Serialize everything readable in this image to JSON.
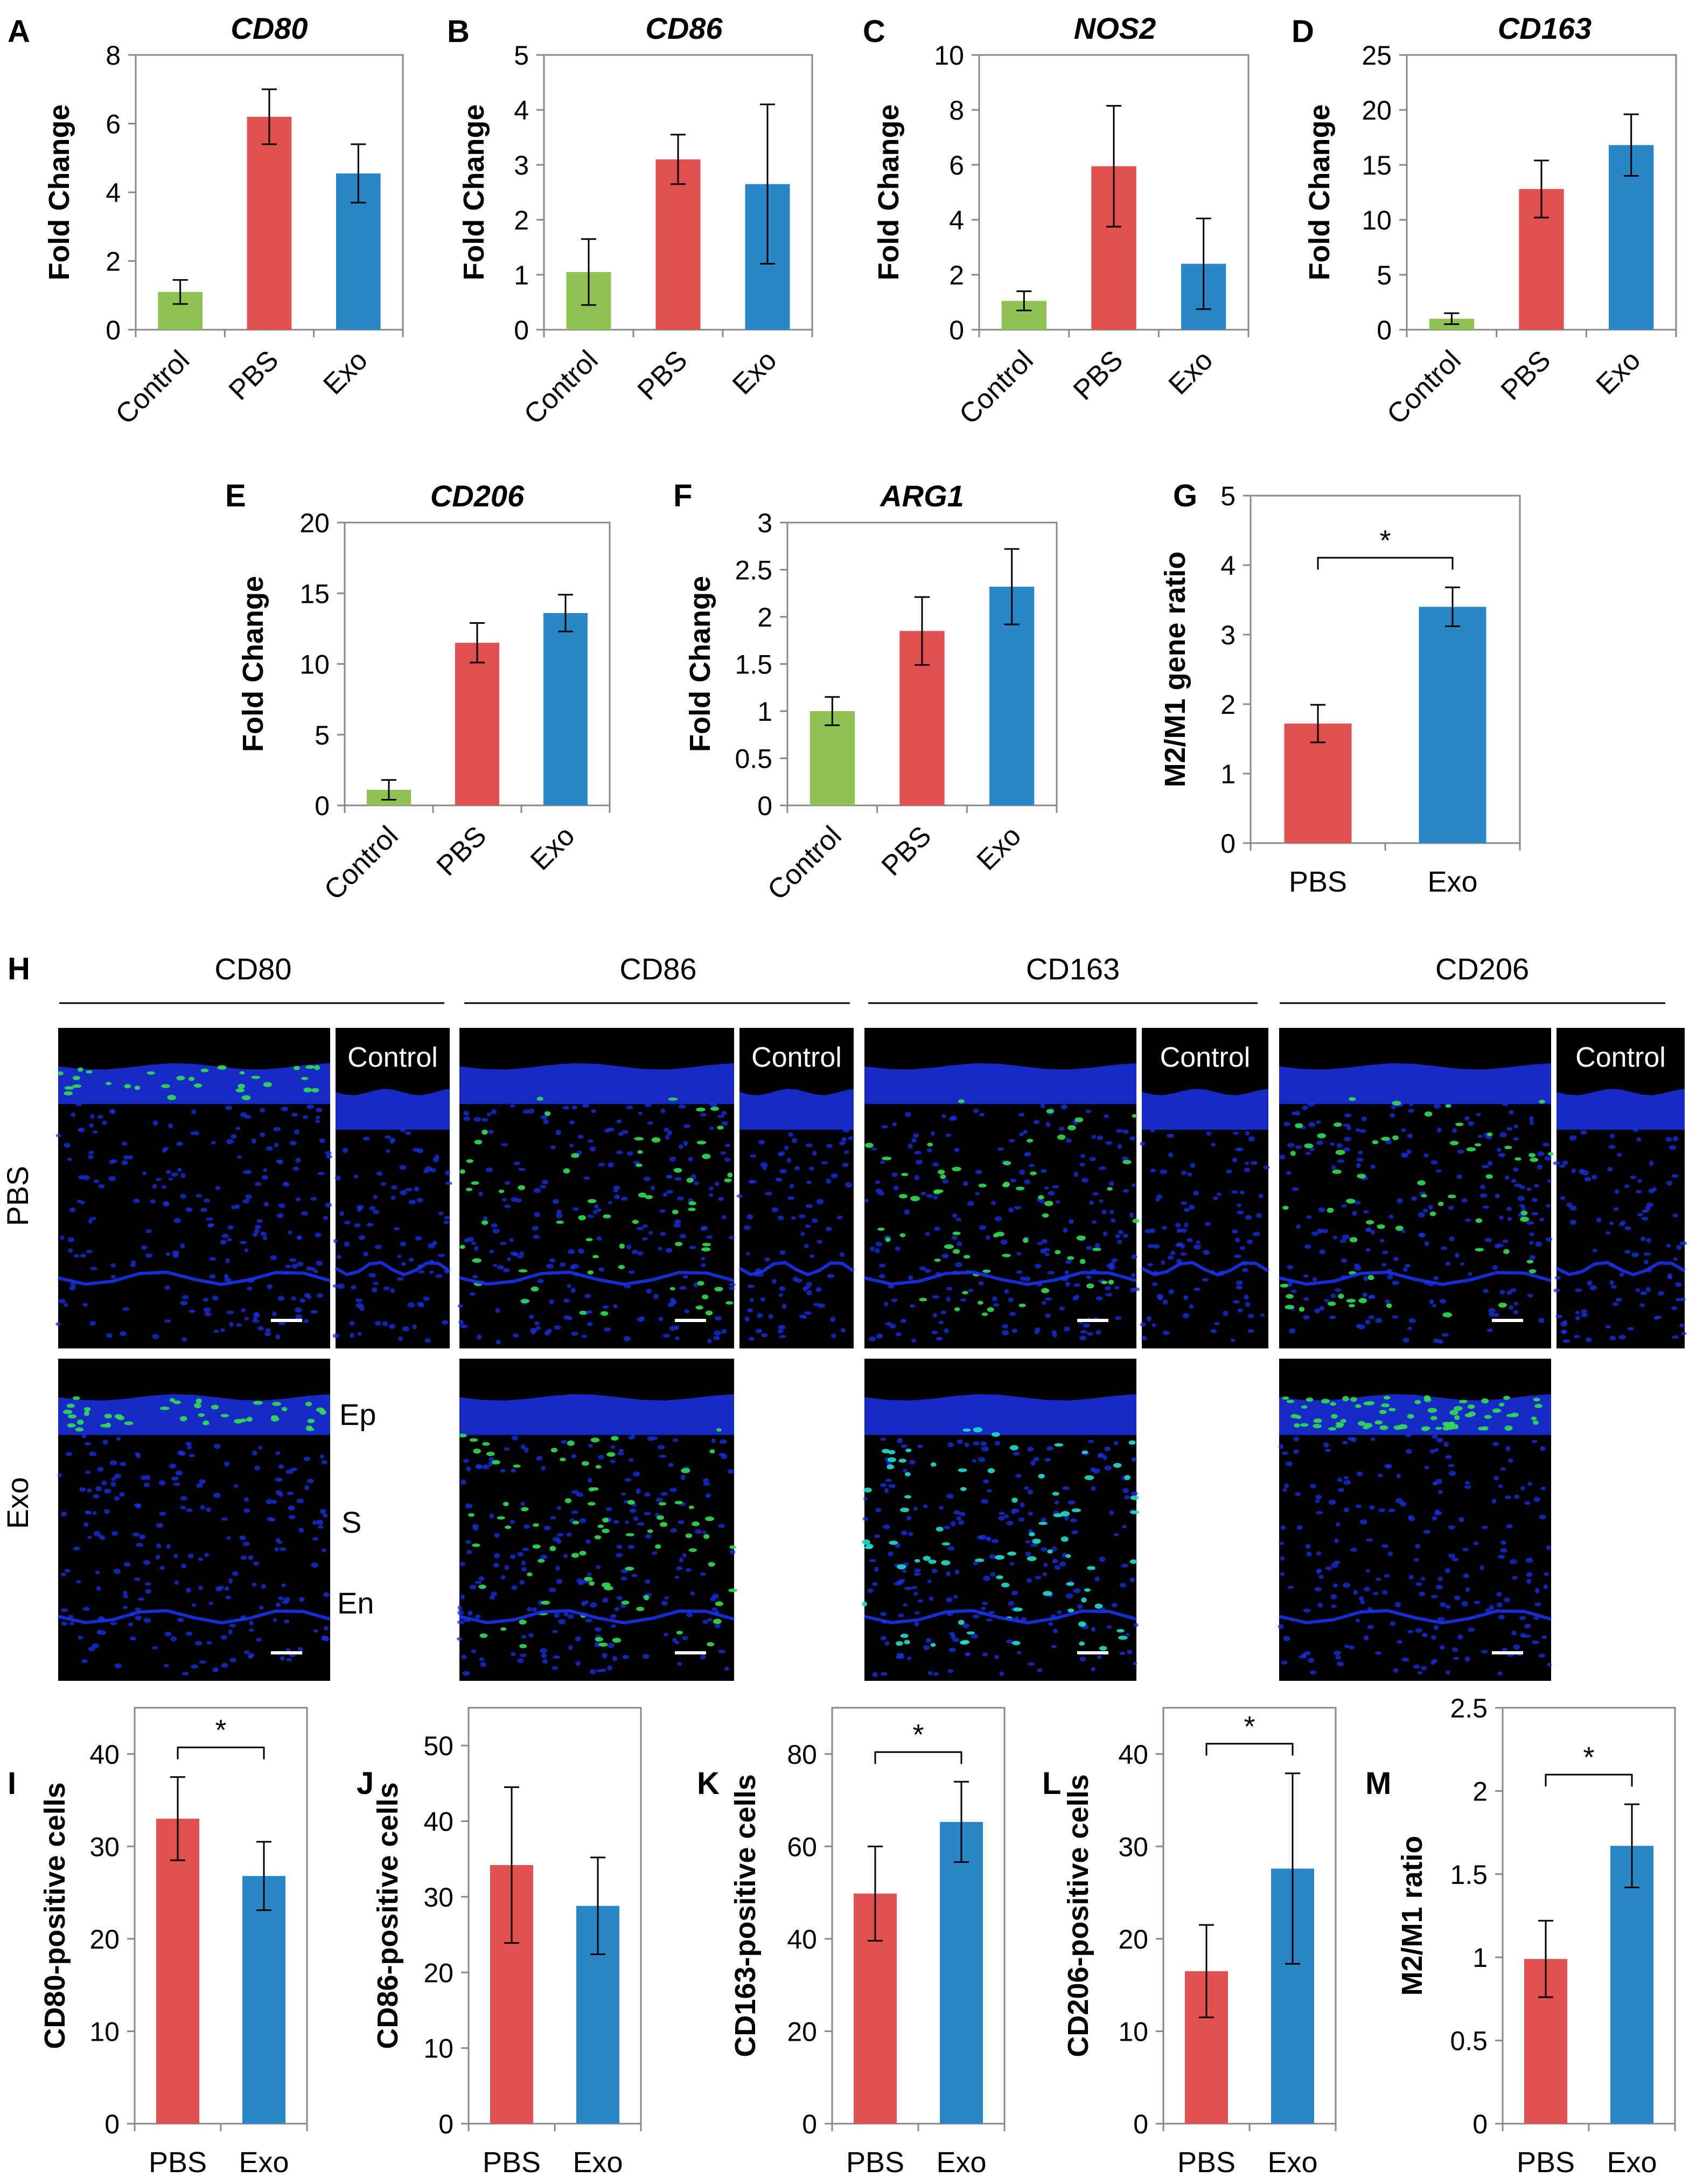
{
  "colors": {
    "control": "#8FC153",
    "pbs": "#E05252",
    "exo": "#2B86C8",
    "axis": "#888888",
    "text": "#000000",
    "nuclei": "#1A32E6",
    "stain": "#33DD55"
  },
  "charts_top": [
    {
      "label": "A",
      "type": "bar",
      "title": "CD80",
      "ylabel": "Fold Change",
      "categories": [
        "Control",
        "PBS",
        "Exo"
      ],
      "values": [
        1.1,
        6.2,
        4.55
      ],
      "errors": [
        0.35,
        0.8,
        0.85
      ],
      "ylim": [
        0,
        8
      ],
      "yticks": [
        "0",
        "2",
        "4",
        "6",
        "8"
      ]
    },
    {
      "label": "B",
      "type": "bar",
      "title": "CD86",
      "ylabel": "Fold Change",
      "categories": [
        "Control",
        "PBS",
        "Exo"
      ],
      "values": [
        1.05,
        3.1,
        2.65
      ],
      "errors": [
        0.6,
        0.45,
        1.45
      ],
      "ylim": [
        0,
        5
      ],
      "yticks": [
        "0",
        "1",
        "2",
        "3",
        "4",
        "5"
      ]
    },
    {
      "label": "C",
      "type": "bar",
      "title": "NOS2",
      "ylabel": "Fold Change",
      "categories": [
        "Control",
        "PBS",
        "Exo"
      ],
      "values": [
        1.05,
        5.95,
        2.4
      ],
      "errors": [
        0.35,
        2.2,
        1.65
      ],
      "ylim": [
        0,
        10
      ],
      "yticks": [
        "0",
        "2",
        "4",
        "6",
        "8",
        "10"
      ]
    },
    {
      "label": "D",
      "type": "bar",
      "title": "CD163",
      "ylabel": "Fold Change",
      "categories": [
        "Control",
        "PBS",
        "Exo"
      ],
      "values": [
        1.0,
        12.8,
        16.8
      ],
      "errors": [
        0.5,
        2.6,
        2.8
      ],
      "ylim": [
        0,
        25
      ],
      "yticks": [
        "0",
        "5",
        "10",
        "15",
        "20",
        "25"
      ]
    }
  ],
  "charts_mid": [
    {
      "label": "E",
      "type": "bar",
      "title": "CD206",
      "ylabel": "Fold Change",
      "categories": [
        "Control",
        "PBS",
        "Exo"
      ],
      "values": [
        1.1,
        11.5,
        13.6
      ],
      "errors": [
        0.7,
        1.4,
        1.3
      ],
      "ylim": [
        0,
        20
      ],
      "yticks": [
        "0",
        "5",
        "10",
        "15",
        "20"
      ]
    },
    {
      "label": "F",
      "type": "bar",
      "title": "ARG1",
      "ylabel": "Fold Change",
      "categories": [
        "Control",
        "PBS",
        "Exo"
      ],
      "values": [
        1.0,
        1.85,
        2.32
      ],
      "errors": [
        0.15,
        0.36,
        0.4
      ],
      "ylim": [
        0,
        3
      ],
      "yticks": [
        "0",
        "0.5",
        "1",
        "1.5",
        "2",
        "2.5",
        "3"
      ]
    },
    {
      "label": "G",
      "type": "bar",
      "title": "",
      "ylabel": "M2/M1 gene ratio",
      "categories": [
        "PBS",
        "Exo"
      ],
      "values": [
        1.72,
        3.4
      ],
      "errors": [
        0.27,
        0.28
      ],
      "ylim": [
        0,
        5
      ],
      "yticks": [
        "0",
        "1",
        "2",
        "3",
        "4",
        "5"
      ],
      "sig": "*"
    }
  ],
  "charts_bottom": [
    {
      "label": "I",
      "type": "bar",
      "title": "",
      "ylabel": "CD80-positive cells",
      "categories": [
        "PBS",
        "Exo"
      ],
      "values": [
        33,
        26.8
      ],
      "errors": [
        4.5,
        3.7
      ],
      "ylim": [
        0,
        45
      ],
      "yticks": [
        "0",
        "10",
        "20",
        "30",
        "40"
      ],
      "sig": "*"
    },
    {
      "label": "J",
      "type": "bar",
      "title": "",
      "ylabel": "CD86-positive cells",
      "categories": [
        "PBS",
        "Exo"
      ],
      "values": [
        34.2,
        28.8
      ],
      "errors": [
        10.3,
        6.4
      ],
      "ylim": [
        0,
        55
      ],
      "yticks": [
        "0",
        "10",
        "20",
        "30",
        "40",
        "50"
      ]
    },
    {
      "label": "K",
      "type": "bar",
      "title": "",
      "ylabel": "CD163-positive cells",
      "categories": [
        "PBS",
        "Exo"
      ],
      "values": [
        49.8,
        65.3
      ],
      "errors": [
        10.2,
        8.7
      ],
      "ylim": [
        0,
        90
      ],
      "yticks": [
        "0",
        "20",
        "40",
        "60",
        "80"
      ],
      "sig": "*"
    },
    {
      "label": "L",
      "type": "bar",
      "title": "",
      "ylabel": "CD206-positive cells",
      "categories": [
        "PBS",
        "Exo"
      ],
      "values": [
        16.5,
        27.6
      ],
      "errors": [
        5,
        10.3
      ],
      "ylim": [
        0,
        45
      ],
      "yticks": [
        "0",
        "10",
        "20",
        "30",
        "40"
      ],
      "sig": "*"
    },
    {
      "label": "M",
      "type": "bar",
      "title": "",
      "ylabel": "M2/M1 ratio",
      "categories": [
        "PBS",
        "Exo"
      ],
      "values": [
        0.99,
        1.67
      ],
      "errors": [
        0.23,
        0.25
      ],
      "ylim": [
        0,
        2.5
      ],
      "yticks": [
        "0",
        "0.5",
        "1",
        "1.5",
        "2",
        "2.5"
      ],
      "sig": "*"
    }
  ],
  "micrographs": {
    "label": "H",
    "markers": [
      "CD80",
      "CD86",
      "CD163",
      "CD206"
    ],
    "row_labels": [
      "PBS",
      "Exo"
    ],
    "control_label": "Control",
    "layer_labels": [
      "Ep",
      "S",
      "En"
    ]
  }
}
